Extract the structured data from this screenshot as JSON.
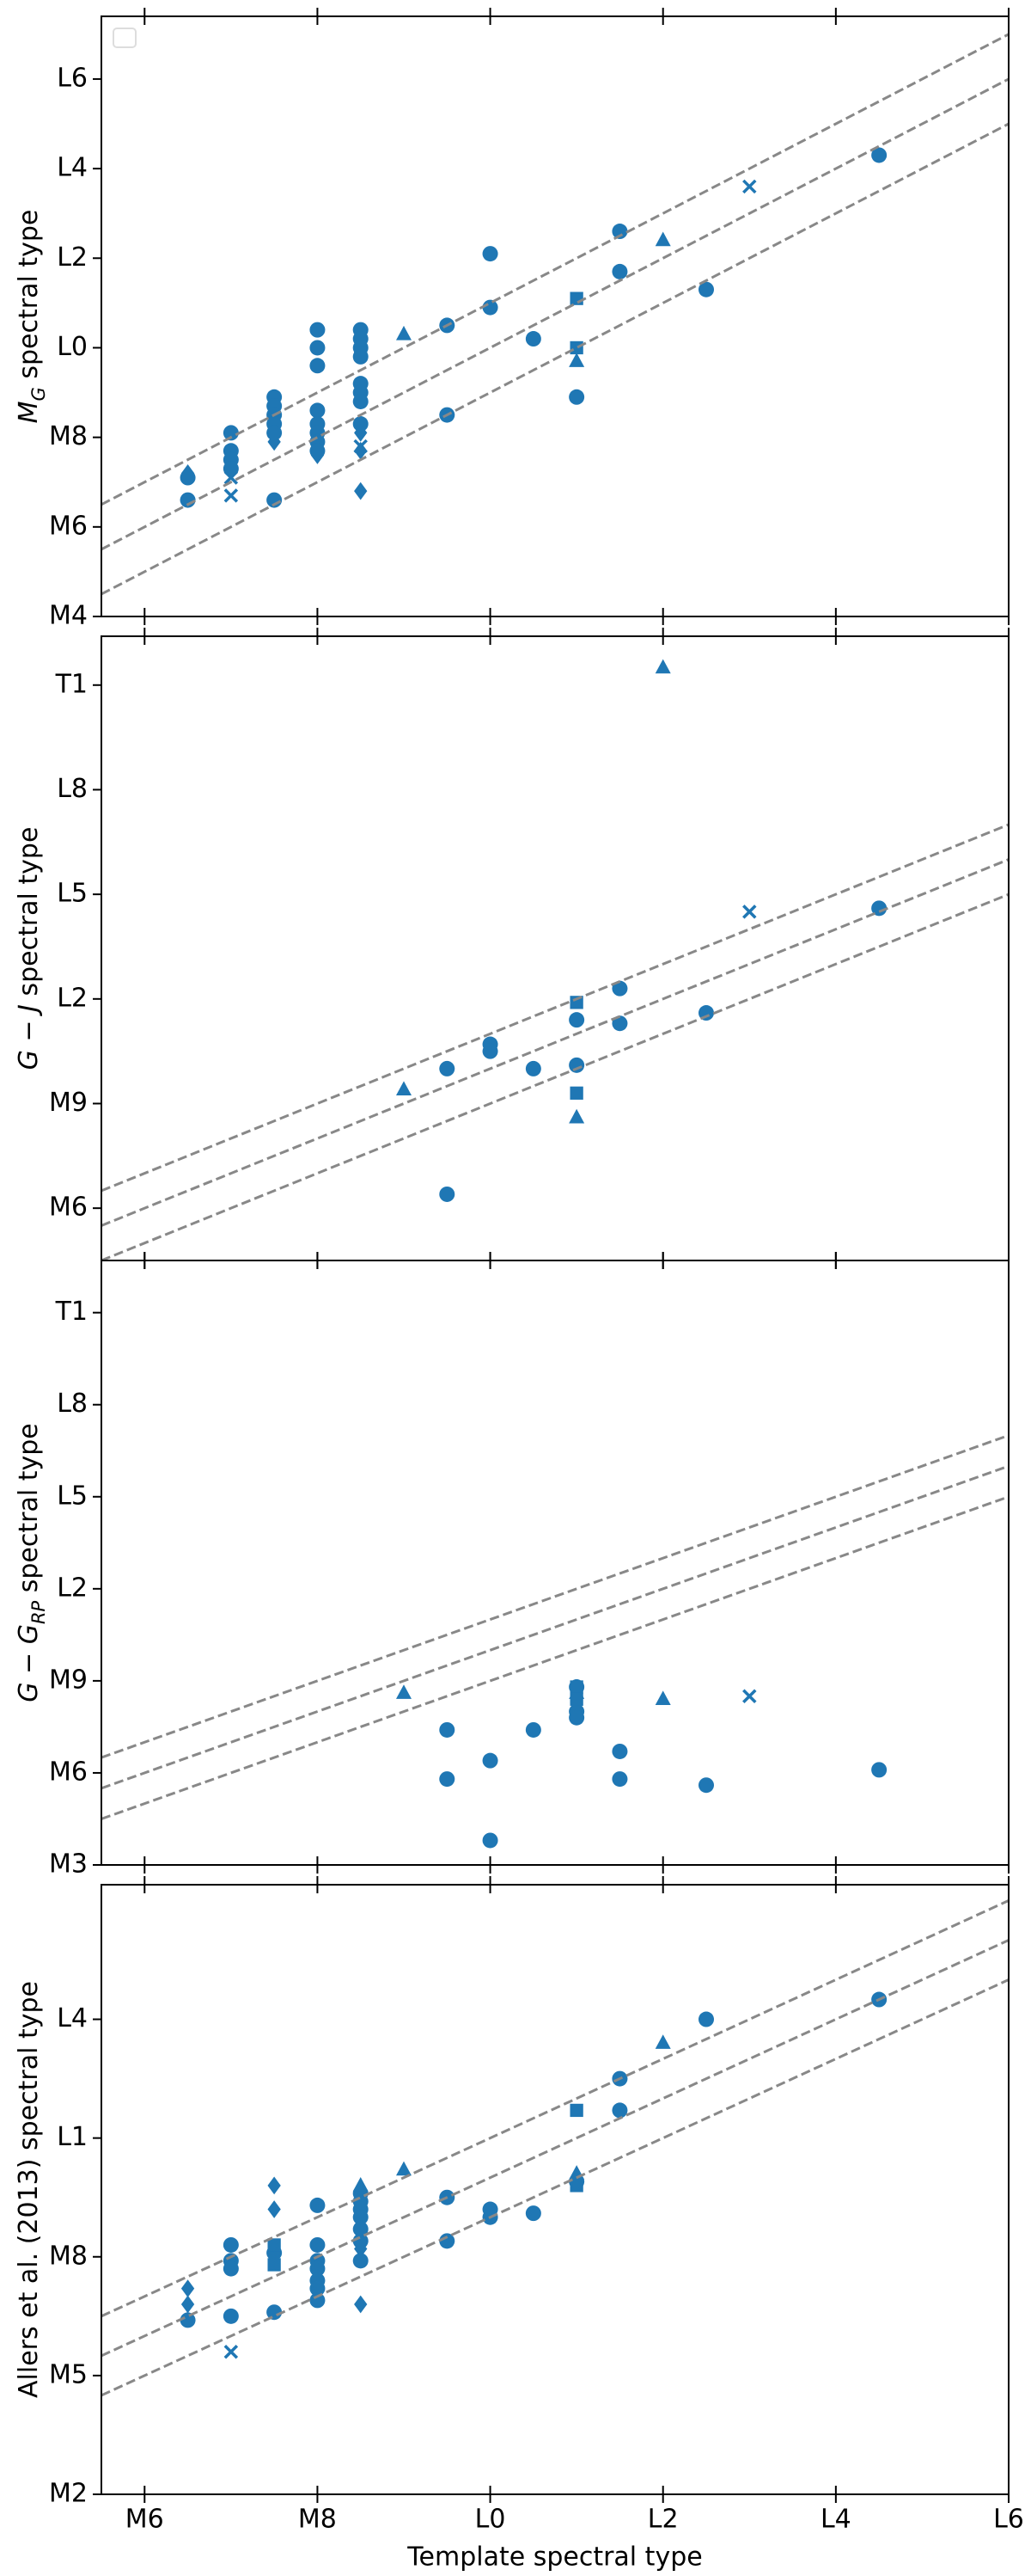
{
  "chart_data": [
    {
      "type": "scatter",
      "y_label": [
        {
          "text": "M",
          "style": "italic"
        },
        {
          "text": "G",
          "style": "sub"
        },
        {
          "text": " spectral type",
          "style": "normal"
        }
      ],
      "xlim": [
        5.5,
        16
      ],
      "xticks": [
        6,
        8,
        10,
        12,
        14,
        16
      ],
      "ylim": [
        4,
        17.4
      ],
      "yticks": [
        {
          "value": 4,
          "label": "M4"
        },
        {
          "value": 6,
          "label": "M6"
        },
        {
          "value": 8,
          "label": "M8"
        },
        {
          "value": 10,
          "label": "L0"
        },
        {
          "value": 12,
          "label": "L2"
        },
        {
          "value": 14,
          "label": "L4"
        },
        {
          "value": 16,
          "label": "L6"
        }
      ],
      "legend": "upper left",
      "series": [
        {
          "marker": "circle",
          "color": "#1f77b4",
          "x": [
            6.5,
            6.5,
            7,
            7,
            7,
            7,
            7.5,
            7.5,
            7.5,
            7.5,
            7.5,
            7.5,
            8,
            8,
            8,
            8,
            8,
            8,
            8,
            8,
            8.5,
            8.5,
            8.5,
            8.5,
            8.5,
            8.5,
            8.5,
            8.5,
            9.5,
            9.5,
            10,
            10,
            10.5,
            11,
            11.5,
            11.5,
            12.5,
            14.5
          ],
          "values": [
            7.1,
            6.6,
            8.1,
            7.7,
            7.5,
            7.3,
            8.9,
            8.7,
            8.5,
            8.3,
            8.1,
            6.6,
            10.4,
            10.0,
            9.6,
            8.6,
            8.3,
            8.1,
            7.9,
            7.7,
            10.4,
            10.2,
            10.0,
            9.8,
            9.2,
            9.0,
            8.8,
            8.3,
            10.5,
            8.5,
            12.1,
            10.9,
            10.2,
            8.9,
            12.6,
            11.7,
            11.3,
            14.3
          ]
        },
        {
          "marker": "triangle",
          "color": "#1f77b4",
          "x": [
            9,
            11,
            12
          ],
          "values": [
            10.3,
            9.7,
            12.4
          ]
        },
        {
          "marker": "square",
          "color": "#1f77b4",
          "x": [
            8.5,
            11,
            11
          ],
          "values": [
            9.9,
            11.1,
            10.0
          ]
        },
        {
          "marker": "x",
          "color": "#1f77b4",
          "x": [
            7,
            7,
            8.5,
            13
          ],
          "values": [
            7.1,
            6.7,
            7.8,
            13.6
          ]
        },
        {
          "marker": "diamond",
          "color": "#1f77b4",
          "x": [
            6.5,
            7.5,
            8,
            8.5,
            8.5,
            8.5
          ],
          "values": [
            7.2,
            7.9,
            7.6,
            8.1,
            7.7,
            6.8
          ]
        },
        {
          "style": "dashed",
          "color": "#888888",
          "x": [
            5.5,
            16
          ],
          "values": [
            6.5,
            17
          ]
        },
        {
          "style": "dashed",
          "color": "#888888",
          "x": [
            5.5,
            16
          ],
          "values": [
            5.5,
            16
          ]
        },
        {
          "style": "dashed",
          "color": "#888888",
          "x": [
            5.5,
            16
          ],
          "values": [
            4.5,
            15
          ]
        }
      ]
    },
    {
      "type": "scatter",
      "y_label": [
        {
          "text": "G − ",
          "style": "italic"
        },
        {
          "text": "J",
          "style": "italic"
        },
        {
          "text": " spectral type",
          "style": "normal"
        }
      ],
      "xlim": [
        5.5,
        16
      ],
      "xticks": [
        6,
        8,
        10,
        12,
        14,
        16
      ],
      "ylim": [
        4.5,
        22.4
      ],
      "yticks": [
        {
          "value": 6,
          "label": "M6"
        },
        {
          "value": 9,
          "label": "M9"
        },
        {
          "value": 12,
          "label": "L2"
        },
        {
          "value": 15,
          "label": "L5"
        },
        {
          "value": 18,
          "label": "L8"
        },
        {
          "value": 21,
          "label": "T1"
        }
      ],
      "series": [
        {
          "marker": "circle",
          "color": "#1f77b4",
          "x": [
            9.5,
            9.5,
            10,
            10,
            10.5,
            11,
            11,
            11.5,
            11.5,
            12.5,
            14.5
          ],
          "values": [
            10.0,
            6.4,
            10.7,
            10.5,
            10.0,
            11.4,
            10.1,
            12.3,
            11.3,
            11.6,
            14.6
          ]
        },
        {
          "marker": "triangle",
          "color": "#1f77b4",
          "x": [
            9,
            11,
            12
          ],
          "values": [
            9.4,
            8.6,
            21.5
          ]
        },
        {
          "marker": "square",
          "color": "#1f77b4",
          "x": [
            11,
            11
          ],
          "values": [
            11.9,
            9.3
          ]
        },
        {
          "marker": "x",
          "color": "#1f77b4",
          "x": [
            13
          ],
          "values": [
            14.5
          ]
        },
        {
          "style": "dashed",
          "color": "#888888",
          "x": [
            5.5,
            16
          ],
          "values": [
            6.5,
            17
          ]
        },
        {
          "style": "dashed",
          "color": "#888888",
          "x": [
            5.5,
            16
          ],
          "values": [
            5.5,
            16
          ]
        },
        {
          "style": "dashed",
          "color": "#888888",
          "x": [
            5.5,
            16
          ],
          "values": [
            4.5,
            15
          ]
        }
      ]
    },
    {
      "type": "scatter",
      "y_label": [
        {
          "text": "G − G",
          "style": "italic"
        },
        {
          "text": "RP",
          "style": "sub"
        },
        {
          "text": " spectral type",
          "style": "normal"
        }
      ],
      "xlim": [
        5.5,
        16
      ],
      "xticks": [
        6,
        8,
        10,
        12,
        14,
        16
      ],
      "ylim": [
        3,
        22.7
      ],
      "yticks": [
        {
          "value": 3,
          "label": "M3"
        },
        {
          "value": 6,
          "label": "M6"
        },
        {
          "value": 9,
          "label": "M9"
        },
        {
          "value": 12,
          "label": "L2"
        },
        {
          "value": 15,
          "label": "L5"
        },
        {
          "value": 18,
          "label": "L8"
        },
        {
          "value": 21,
          "label": "T1"
        }
      ],
      "series": [
        {
          "marker": "circle",
          "color": "#1f77b4",
          "x": [
            9.5,
            9.5,
            10,
            10,
            10.5,
            11,
            11,
            11,
            11.5,
            11.5,
            12.5,
            14.5
          ],
          "values": [
            7.4,
            5.8,
            6.4,
            3.8,
            7.4,
            8.8,
            8.0,
            7.8,
            6.7,
            5.8,
            5.6,
            6.1
          ]
        },
        {
          "marker": "triangle",
          "color": "#1f77b4",
          "x": [
            9,
            11,
            12
          ],
          "values": [
            8.6,
            8.6,
            8.4
          ]
        },
        {
          "marker": "square",
          "color": "#1f77b4",
          "x": [
            11,
            11
          ],
          "values": [
            8.8,
            8.4
          ]
        },
        {
          "marker": "x",
          "color": "#1f77b4",
          "x": [
            13
          ],
          "values": [
            8.5
          ]
        },
        {
          "style": "dashed",
          "color": "#888888",
          "x": [
            5.5,
            16
          ],
          "values": [
            6.5,
            17
          ]
        },
        {
          "style": "dashed",
          "color": "#888888",
          "x": [
            5.5,
            16
          ],
          "values": [
            5.5,
            16
          ]
        },
        {
          "style": "dashed",
          "color": "#888888",
          "x": [
            5.5,
            16
          ],
          "values": [
            4.5,
            15
          ]
        }
      ]
    },
    {
      "type": "scatter",
      "y_label": [
        {
          "text": "Allers et al. (2013) spectral type",
          "style": "normal"
        }
      ],
      "x_label": "Template spectral type",
      "xlim": [
        5.5,
        16
      ],
      "xticks": [
        {
          "value": 6,
          "label": "M6"
        },
        {
          "value": 8,
          "label": "M8"
        },
        {
          "value": 10,
          "label": "L0"
        },
        {
          "value": 12,
          "label": "L2"
        },
        {
          "value": 14,
          "label": "L4"
        },
        {
          "value": 16,
          "label": "L6"
        }
      ],
      "ylim": [
        2,
        17.4
      ],
      "yticks": [
        {
          "value": 2,
          "label": "M2"
        },
        {
          "value": 5,
          "label": "M5"
        },
        {
          "value": 8,
          "label": "M8"
        },
        {
          "value": 11,
          "label": "L1"
        },
        {
          "value": 14,
          "label": "L4"
        }
      ],
      "series": [
        {
          "marker": "circle",
          "color": "#1f77b4",
          "x": [
            6.5,
            7,
            7,
            7,
            7,
            7.5,
            7.5,
            8,
            8,
            8,
            8,
            8,
            8,
            8,
            8.5,
            8.5,
            8.5,
            8.5,
            8.5,
            8.5,
            8.5,
            9.5,
            9.5,
            10,
            10,
            10.5,
            11,
            11.5,
            11.5,
            12.5,
            14.5
          ],
          "values": [
            6.4,
            8.3,
            7.9,
            7.7,
            6.5,
            8.1,
            6.6,
            9.3,
            8.3,
            7.9,
            7.7,
            7.4,
            7.2,
            6.9,
            9.6,
            9.4,
            9.2,
            9.0,
            8.7,
            8.4,
            7.9,
            9.5,
            8.4,
            9.2,
            9.0,
            9.1,
            9.9,
            12.5,
            11.7,
            14.0,
            14.5
          ]
        },
        {
          "marker": "triangle",
          "color": "#1f77b4",
          "x": [
            8.5,
            9,
            11,
            12
          ],
          "values": [
            9.8,
            10.2,
            10.1,
            13.4
          ]
        },
        {
          "marker": "square",
          "color": "#1f77b4",
          "x": [
            7.5,
            7.5,
            11,
            11
          ],
          "values": [
            8.3,
            7.8,
            11.7,
            9.8
          ]
        },
        {
          "marker": "x",
          "color": "#1f77b4",
          "x": [
            7
          ],
          "values": [
            5.6
          ]
        },
        {
          "marker": "diamond",
          "color": "#1f77b4",
          "x": [
            6.5,
            6.5,
            7.5,
            7.5,
            8.5,
            8.5,
            8.5
          ],
          "values": [
            7.2,
            6.8,
            9.8,
            9.2,
            6.8,
            8.7,
            8.2
          ]
        },
        {
          "style": "dashed",
          "color": "#888888",
          "x": [
            5.5,
            16
          ],
          "values": [
            6.5,
            17
          ]
        },
        {
          "style": "dashed",
          "color": "#888888",
          "x": [
            5.5,
            16
          ],
          "values": [
            5.5,
            16
          ]
        },
        {
          "style": "dashed",
          "color": "#888888",
          "x": [
            5.5,
            16
          ],
          "values": [
            4.5,
            15
          ]
        }
      ]
    }
  ]
}
